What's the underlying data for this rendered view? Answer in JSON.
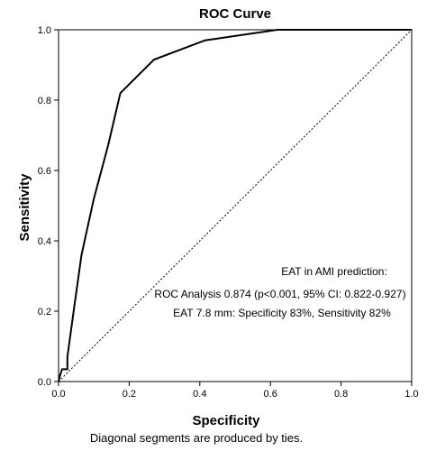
{
  "chart_data": {
    "type": "line",
    "title": "ROC Curve",
    "xlabel": "Specificity",
    "ylabel": "Sensitivity",
    "xlim": [
      0,
      1
    ],
    "ylim": [
      0,
      1
    ],
    "xticks": [
      "0.0",
      "0.2",
      "0.4",
      "0.6",
      "0.8",
      "1.0"
    ],
    "yticks": [
      "0.0",
      "0.2",
      "0.4",
      "0.6",
      "0.8",
      "1.0"
    ],
    "xtick_values": [
      0,
      0.2,
      0.4,
      0.6,
      0.8,
      1.0
    ],
    "ytick_values": [
      0,
      0.2,
      0.4,
      0.6,
      0.8,
      1.0
    ],
    "grid": false,
    "series": [
      {
        "x": [
          0,
          0.005,
          0.01,
          0.025,
          0.025,
          0.04,
          0.065,
          0.1,
          0.14,
          0.175,
          0.27,
          0.415,
          0.62,
          1.0
        ],
        "y": [
          0,
          0.02,
          0.035,
          0.035,
          0.07,
          0.18,
          0.36,
          0.52,
          0.67,
          0.82,
          0.915,
          0.97,
          1.0,
          1.0
        ],
        "style": "solid"
      },
      {
        "x": [
          0,
          1
        ],
        "y": [
          0,
          1
        ],
        "style": "dotted"
      }
    ],
    "annotations": [
      "EAT in AMI prediction:",
      "ROC Analysis 0.874 (p<0.001, 95% CI: 0.822-0.927)",
      "EAT 7.8 mm: Specificity 83%, Sensitivity 82%"
    ],
    "footnote": "Diagonal segments are produced by ties."
  }
}
